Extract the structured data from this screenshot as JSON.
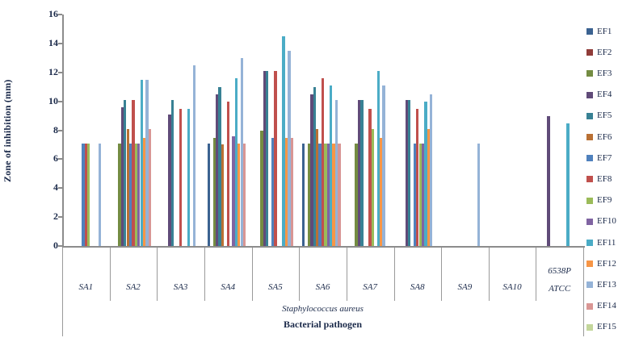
{
  "chart_data": {
    "type": "bar",
    "title": "",
    "ylabel": "Zone of inhibition (mm)",
    "xlabel": "Bacterial pathogen",
    "xlabel_secondary": "Staphylococcus aureus",
    "ylim": [
      0,
      16
    ],
    "y_ticks": [
      0,
      2,
      4,
      6,
      8,
      10,
      12,
      14,
      16
    ],
    "grid": false,
    "legend_position": "right",
    "categories": [
      "SA1",
      "SA2",
      "SA3",
      "SA4",
      "SA5",
      "SA6",
      "SA7",
      "SA8",
      "SA9",
      "SA10",
      "ATCC 6538P"
    ],
    "last_category_lines": [
      "6538P",
      "ATCC"
    ],
    "series": [
      {
        "name": "EF1",
        "color": "#3B6291",
        "values": [
          0,
          0,
          0,
          7.1,
          0,
          7.1,
          0,
          0,
          0,
          0,
          0
        ]
      },
      {
        "name": "EF2",
        "color": "#903C39",
        "values": [
          0,
          0,
          0,
          0,
          0,
          0,
          0,
          0,
          0,
          0,
          0
        ]
      },
      {
        "name": "EF3",
        "color": "#748C42",
        "values": [
          0,
          7.1,
          0,
          7.5,
          8,
          7.1,
          7.1,
          0,
          0,
          0,
          0
        ]
      },
      {
        "name": "EF4",
        "color": "#604B79",
        "values": [
          0,
          9.6,
          9.1,
          10.5,
          12.1,
          10.5,
          10.1,
          10.1,
          0,
          0,
          9
        ]
      },
      {
        "name": "EF5",
        "color": "#388194",
        "values": [
          0,
          10.1,
          10.1,
          11,
          12.1,
          11,
          10.1,
          10.1,
          0,
          0,
          0
        ]
      },
      {
        "name": "EF6",
        "color": "#B97034",
        "values": [
          0,
          8.1,
          0,
          7,
          0,
          8.1,
          0,
          0,
          0,
          0,
          0
        ]
      },
      {
        "name": "EF7",
        "color": "#4F81BD",
        "values": [
          7.1,
          7.1,
          0,
          0,
          7.5,
          7.1,
          0,
          7.1,
          0,
          0,
          0
        ]
      },
      {
        "name": "EF8",
        "color": "#C0504D",
        "values": [
          7.1,
          10.1,
          9.5,
          10,
          12.1,
          11.6,
          9.5,
          9.5,
          0,
          0,
          0
        ]
      },
      {
        "name": "EF9",
        "color": "#9BBB59",
        "values": [
          7.1,
          7.1,
          0,
          0,
          0,
          7.1,
          8.1,
          7.1,
          0,
          0,
          0
        ]
      },
      {
        "name": "EF10",
        "color": "#8064A2",
        "values": [
          0,
          7.1,
          0,
          7.6,
          0,
          7.1,
          0,
          7.1,
          0,
          0,
          0
        ]
      },
      {
        "name": "EF11",
        "color": "#4BACC6",
        "values": [
          0,
          11.5,
          9.5,
          11.6,
          14.5,
          11.1,
          12.1,
          10,
          0,
          0,
          8.5
        ]
      },
      {
        "name": "EF12",
        "color": "#F79646",
        "values": [
          0,
          7.5,
          0,
          7.1,
          7.5,
          7.1,
          7.5,
          8.1,
          0,
          0,
          0
        ]
      },
      {
        "name": "EF13",
        "color": "#95B3D7",
        "values": [
          7.1,
          11.5,
          12.5,
          13,
          13.5,
          10.1,
          11.1,
          10.5,
          7.1,
          0,
          0
        ]
      },
      {
        "name": "EF14",
        "color": "#D99694",
        "values": [
          0,
          8.1,
          0,
          7.1,
          7.5,
          7.1,
          0,
          0,
          0,
          0,
          0
        ]
      },
      {
        "name": "EF15",
        "color": "#C3D69B",
        "values": [
          0,
          0,
          0,
          0,
          0,
          0,
          0,
          0,
          0,
          0,
          0
        ]
      }
    ]
  }
}
